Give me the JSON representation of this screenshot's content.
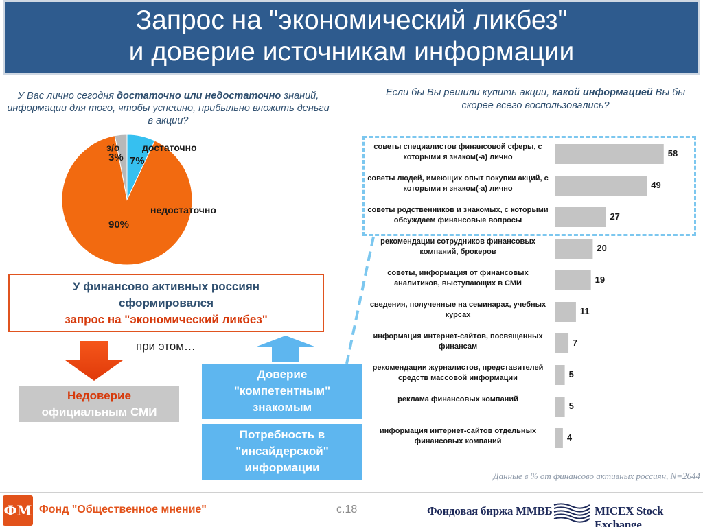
{
  "header": {
    "title_line1": "Запрос на \"экономический ликбез\"",
    "title_line2": "и доверие источникам информации"
  },
  "left_question": {
    "part1": "У Вас лично сегодня ",
    "bold": "достаточно или недостаточно",
    "part2": " знаний, информации для того, чтобы успешно, прибыльно вложить деньги в акции?"
  },
  "right_question": {
    "part1": "Если бы Вы решили купить акции, ",
    "bold": "какой информацией",
    "part2": "  Вы бы скорее всего воспользовались?"
  },
  "pie_labels": {
    "no_answer_name": "з/о",
    "no_answer_value": "3%",
    "enough_name": "достаточно",
    "enough_value": "7%",
    "not_enough_name": "недостаточно",
    "not_enough_value": "90%"
  },
  "conclusion": {
    "line1": "У финансово активных россиян",
    "line2": "сформировался",
    "line3": "запрос на \"экономический ликбез\""
  },
  "pri_etom": "при этом…",
  "distrust": {
    "line1": "Недоверие",
    "line2": "официальным СМИ"
  },
  "trust_box": {
    "line1": "Доверие",
    "line2": "\"компетентным\"",
    "line3": "знакомым"
  },
  "insider_box": {
    "line1": "Потребность в",
    "line2": "\"инсайдерской\"",
    "line3": "информации"
  },
  "footnote": "Данные в % от финансово активных россиян, N=2644",
  "footer": {
    "logo_text": "ФМ",
    "org_name": "Фонд \"Общественное мнение\"",
    "page": "с.18",
    "exchange_ru": "Фондовая биржа ММВБ",
    "exchange_en": "MICEX Stock Exchange"
  },
  "colors": {
    "header_bg": "#2e5b8e",
    "pie_not_enough": "#f26a10",
    "pie_enough": "#36c0f0",
    "pie_no_answer": "#b8b8b8",
    "bar_fill": "#c4c4c4",
    "accent_orange": "#e0531f",
    "light_blue": "#5eb6ef"
  },
  "chart_data": [
    {
      "type": "pie",
      "title": "",
      "slices": [
        {
          "name": "з/о",
          "value": 3
        },
        {
          "name": "достаточно",
          "value": 7
        },
        {
          "name": "недостаточно",
          "value": 90
        }
      ]
    },
    {
      "type": "bar",
      "orientation": "horizontal",
      "title": "",
      "categories": [
        "советы специалистов финансовой сферы, с которыми я знаком(-а) лично",
        "советы людей, имеющих опыт покупки акций, с которыми я знаком(-а) лично",
        "советы родственников и знакомых, с которыми обсуждаем финансовые вопросы",
        "рекомендации сотрудников финансовых компаний, брокеров",
        "советы, информация от финансовых аналитиков, выступающих в СМИ",
        "сведения, полученные на семинарах, учебных курсах",
        "информация интернет-сайтов, посвященных финансам",
        "рекомендации журналистов, представителей средств массовой информации",
        "реклама финансовых компаний",
        "информация интернет-сайтов отдельных финансовых компаний"
      ],
      "values": [
        58,
        49,
        27,
        20,
        19,
        11,
        7,
        5,
        5,
        4
      ],
      "xlim": [
        0,
        60
      ],
      "grid": false,
      "legend": "none"
    }
  ]
}
